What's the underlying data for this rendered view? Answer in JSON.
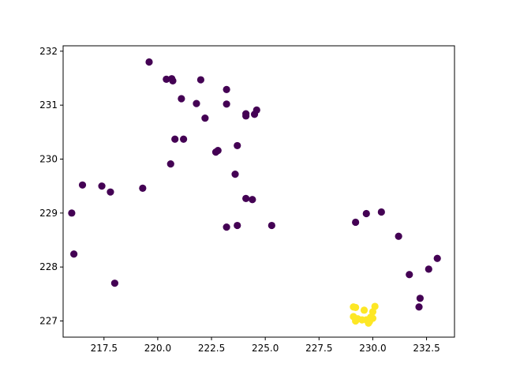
{
  "chart_data": {
    "type": "scatter",
    "title": "",
    "xlabel": "",
    "ylabel": "",
    "xlim": [
      215.6,
      233.8
    ],
    "ylim": [
      226.7,
      232.1
    ],
    "x_ticks": [
      217.5,
      220.0,
      222.5,
      225.0,
      227.5,
      230.0,
      232.5
    ],
    "x_tick_labels": [
      "217.5",
      "220.0",
      "222.5",
      "225.0",
      "227.5",
      "230.0",
      "232.5"
    ],
    "y_ticks": [
      227,
      228,
      229,
      230,
      231,
      232
    ],
    "y_tick_labels": [
      "227",
      "228",
      "229",
      "230",
      "231",
      "232"
    ],
    "grid": false,
    "legend": "none",
    "colors": {
      "cluster_0": "#440154",
      "cluster_1": "#fde725",
      "axes": "#000000",
      "background": "#ffffff"
    },
    "series": [
      {
        "values": [
          [
            219.6,
            231.8
          ],
          [
            220.4,
            231.48
          ],
          [
            220.65,
            231.49
          ],
          [
            220.7,
            231.45
          ],
          [
            222.0,
            231.47
          ],
          [
            223.2,
            231.29
          ],
          [
            221.1,
            231.12
          ],
          [
            221.8,
            231.03
          ],
          [
            223.2,
            231.02
          ],
          [
            224.1,
            230.84
          ],
          [
            224.1,
            230.8
          ],
          [
            224.5,
            230.83
          ],
          [
            224.6,
            230.91
          ],
          [
            222.2,
            230.76
          ],
          [
            220.8,
            230.37
          ],
          [
            221.2,
            230.37
          ],
          [
            223.7,
            230.25
          ],
          [
            222.7,
            230.13
          ],
          [
            222.8,
            230.16
          ],
          [
            220.6,
            229.91
          ],
          [
            223.6,
            229.72
          ],
          [
            216.5,
            229.52
          ],
          [
            217.4,
            229.5
          ],
          [
            217.8,
            229.39
          ],
          [
            219.3,
            229.46
          ],
          [
            224.1,
            229.27
          ],
          [
            224.4,
            229.25
          ],
          [
            216.0,
            229.0
          ],
          [
            223.2,
            228.74
          ],
          [
            223.7,
            228.77
          ],
          [
            225.3,
            228.77
          ],
          [
            216.1,
            228.24
          ],
          [
            218.0,
            227.7
          ],
          [
            229.2,
            228.83
          ],
          [
            229.7,
            228.99
          ],
          [
            230.4,
            229.02
          ],
          [
            231.2,
            228.57
          ],
          [
            233.0,
            228.16
          ],
          [
            232.6,
            227.96
          ],
          [
            231.7,
            227.86
          ],
          [
            232.2,
            227.42
          ],
          [
            232.15,
            227.26
          ]
        ]
      },
      {
        "values": [
          [
            229.1,
            227.26
          ],
          [
            229.2,
            227.25
          ],
          [
            230.1,
            227.27
          ],
          [
            229.6,
            227.2
          ],
          [
            230.0,
            227.17
          ],
          [
            229.1,
            227.08
          ],
          [
            229.3,
            227.04
          ],
          [
            229.9,
            227.07
          ],
          [
            230.0,
            227.05
          ],
          [
            229.2,
            227.0
          ],
          [
            229.5,
            227.02
          ],
          [
            229.7,
            227.02
          ],
          [
            229.85,
            226.99
          ],
          [
            229.8,
            226.96
          ]
        ]
      }
    ]
  }
}
